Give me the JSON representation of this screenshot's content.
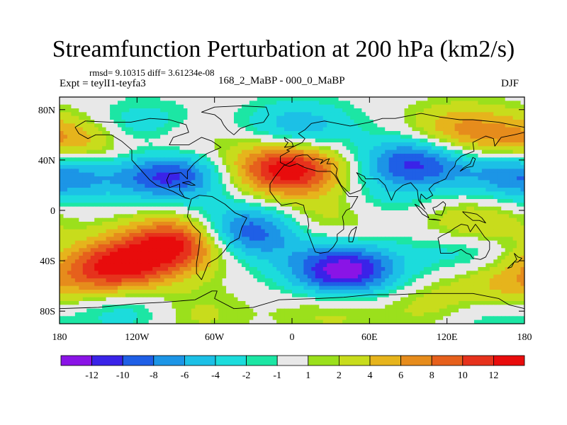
{
  "chart_data": {
    "type": "heatmap",
    "title": "Streamfunction Perturbation at 200 hPa (km2/s)",
    "left_string": "Expt = teylI1-teyfa3",
    "stats_string": "rmsd= 9.10315 diff= 3.61234e-08",
    "center_string": "168_2_MaBP - 000_0_MaBP",
    "right_string": "DJF",
    "x_axis": {
      "range": [
        -180,
        180
      ],
      "ticks": [
        -180,
        -120,
        -60,
        0,
        60,
        120,
        180
      ],
      "tick_labels": [
        "180",
        "120W",
        "60W",
        "0",
        "60E",
        "120E",
        "180"
      ]
    },
    "y_axis": {
      "range": [
        -90,
        90
      ],
      "ticks": [
        80,
        40,
        0,
        -40,
        -80
      ],
      "tick_labels": [
        "80N",
        "40N",
        "0",
        "40S",
        "80S"
      ]
    },
    "colorbar": {
      "levels": [
        -12,
        -10,
        -8,
        -6,
        -4,
        -2,
        -1,
        1,
        2,
        4,
        6,
        8,
        10,
        12
      ],
      "labels": [
        "-12",
        "-10",
        "-8",
        "-6",
        "-4",
        "-2",
        "-1",
        "1",
        "2",
        "4",
        "6",
        "8",
        "10",
        "12"
      ],
      "colors": [
        "#8a14e6",
        "#3a23e8",
        "#1f5fe6",
        "#1c95e6",
        "#1cc0e6",
        "#1cdcdc",
        "#1ce6a4",
        "#e8e8e8",
        "#9be01c",
        "#c8dc1c",
        "#e6b41c",
        "#e68c1c",
        "#e6601c",
        "#e6321c",
        "#e80c0c"
      ]
    },
    "anomalies": [
      {
        "lon": -95,
        "lat": 30,
        "value": -13
      },
      {
        "lon": -40,
        "lat": -18,
        "value": -12
      },
      {
        "lon": 40,
        "lat": -48,
        "value": -14
      },
      {
        "lon": 95,
        "lat": 38,
        "value": -11
      },
      {
        "lon": -115,
        "lat": 62,
        "value": -7
      },
      {
        "lon": 175,
        "lat": 30,
        "value": -6
      },
      {
        "lon": -175,
        "lat": 30,
        "value": -4
      },
      {
        "lon": 5,
        "lat": 65,
        "value": -6
      },
      {
        "lon": 135,
        "lat": -28,
        "value": -6
      },
      {
        "lon": 145,
        "lat": -80,
        "value": -4
      },
      {
        "lon": -125,
        "lat": -78,
        "value": -4
      },
      {
        "lon": 60,
        "lat": 5,
        "value": -3
      },
      {
        "lon": -20,
        "lat": 38,
        "value": 3
      },
      {
        "lon": 0,
        "lat": 32,
        "value": 12
      },
      {
        "lon": -85,
        "lat": -25,
        "value": 14
      },
      {
        "lon": -135,
        "lat": -45,
        "value": 13
      },
      {
        "lon": -100,
        "lat": 50,
        "value": 8
      },
      {
        "lon": -170,
        "lat": 52,
        "value": 8
      },
      {
        "lon": 130,
        "lat": 62,
        "value": 7
      },
      {
        "lon": 140,
        "lat": -15,
        "value": 7
      },
      {
        "lon": 165,
        "lat": -60,
        "value": 5
      },
      {
        "lon": 115,
        "lat": -75,
        "value": 4
      },
      {
        "lon": 35,
        "lat": -5,
        "value": 4
      },
      {
        "lon": 30,
        "lat": -78,
        "value": 3
      },
      {
        "lon": -80,
        "lat": -82,
        "value": 3
      }
    ]
  }
}
